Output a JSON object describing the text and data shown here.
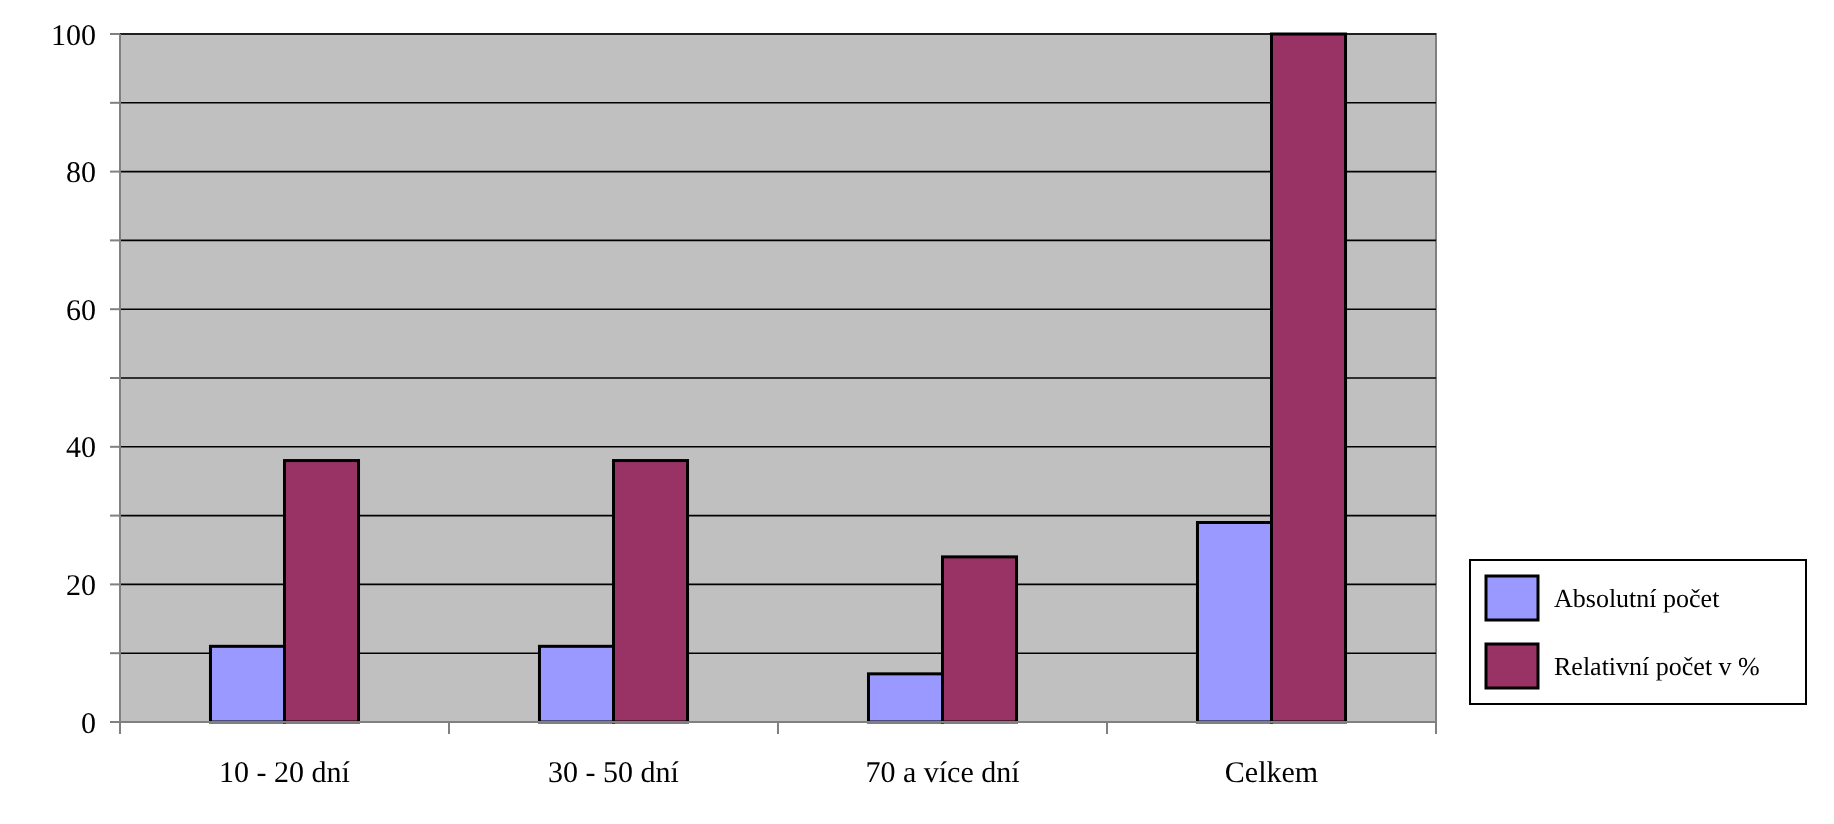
{
  "chart_data": {
    "type": "bar",
    "categories": [
      "10 - 20 dní",
      "30 - 50 dní",
      "70 a více dní",
      "Celkem"
    ],
    "series": [
      {
        "name": "Absolutní počet",
        "color": "#9999ff",
        "values": [
          11,
          11,
          7,
          29
        ]
      },
      {
        "name": "Relativní počet v %",
        "color": "#993366",
        "values": [
          38,
          38,
          24,
          100
        ]
      }
    ],
    "ylim": [
      0,
      100
    ],
    "yticks": [
      0,
      {
        "value": 10,
        "label": null
      },
      20,
      {
        "value": 30,
        "label": null
      },
      40,
      {
        "value": 50,
        "label": null
      },
      60,
      {
        "value": 70,
        "label": null
      },
      80,
      {
        "value": 90,
        "label": null
      },
      100
    ],
    "grid": "y",
    "legend": "right"
  }
}
